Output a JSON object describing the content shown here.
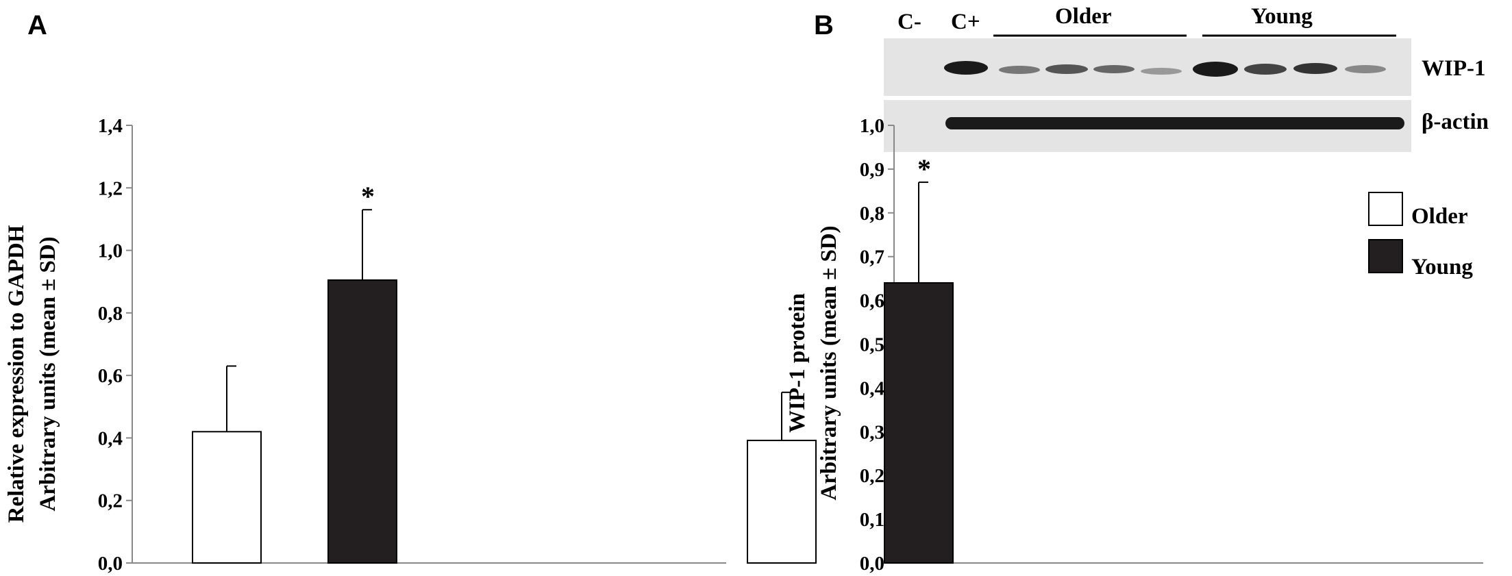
{
  "panels": [
    {
      "letter": "A"
    },
    {
      "letter": "B"
    }
  ],
  "blot": {
    "lane_labels": [
      "C-",
      "C+"
    ],
    "group_labels": [
      "Older",
      "Young"
    ],
    "row_labels": [
      "WIP-1",
      "β-actin"
    ]
  },
  "legend": {
    "items": [
      {
        "label": "Older",
        "color": "#ffffff"
      },
      {
        "label": "Young",
        "color": "#231f20"
      }
    ]
  },
  "colors": {
    "older": "#ffffff",
    "young": "#231f20",
    "axis": "#888888"
  },
  "chart_data": [
    {
      "type": "bar",
      "panel": "A",
      "categories": [
        "Older",
        "Young"
      ],
      "values": [
        0.42,
        0.905
      ],
      "errors": [
        0.21,
        0.225
      ],
      "significance": [
        "",
        "*"
      ],
      "ylabel_lines": [
        "Relative expression to GAPDH",
        "Arbitrary units (mean ± SD)"
      ],
      "ylim": [
        0,
        1.4
      ],
      "yticks": [
        "0,0",
        "0,2",
        "0,4",
        "0,6",
        "0,8",
        "1,0",
        "1,2",
        "1,4"
      ],
      "grid": false
    },
    {
      "type": "bar",
      "panel": "B",
      "categories": [
        "Older",
        "Young"
      ],
      "values": [
        0.28,
        0.64
      ],
      "errors": [
        0.11,
        0.23
      ],
      "significance": [
        "",
        "*"
      ],
      "ylabel_lines": [
        "WIP-1 protein",
        "Arbitrary units (mean ± SD)"
      ],
      "ylim": [
        0,
        1.0
      ],
      "yticks": [
        "0,0",
        "0,1",
        "0,2",
        "0,3",
        "0,4",
        "0,5",
        "0,6",
        "0,7",
        "0,8",
        "0,9",
        "1,0"
      ],
      "legend_position": "top-right",
      "grid": false
    }
  ]
}
